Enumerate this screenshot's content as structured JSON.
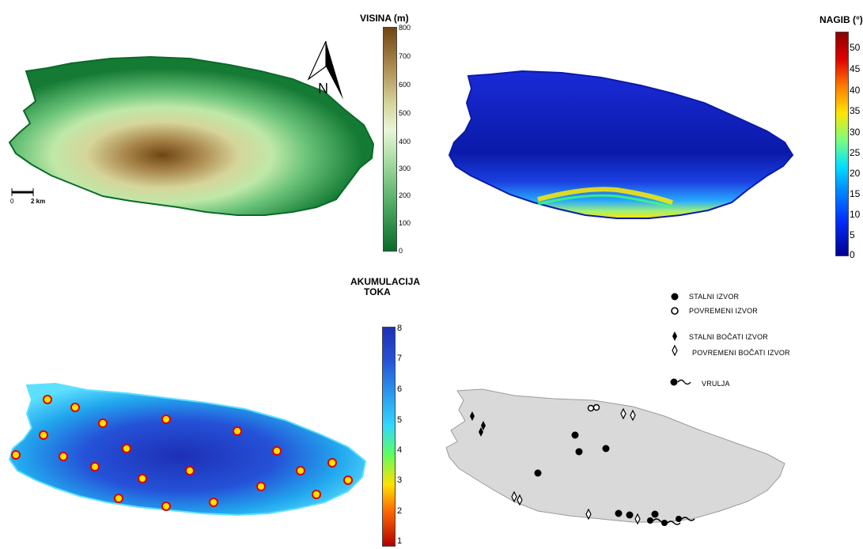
{
  "elevation_map": {
    "legend_title": "VISINA  (m)",
    "ticks": [
      "800",
      "700",
      "600",
      "500",
      "400",
      "300",
      "200",
      "100",
      "0"
    ],
    "scale_bar": {
      "left": "0",
      "right": "2 km"
    },
    "north_label": "N",
    "colors": {
      "low": "#0b6a2a",
      "mid_low": "#3fae5a",
      "mid": "#d8f0c0",
      "mid_high": "#c8b86a",
      "high": "#6e4512"
    }
  },
  "slope_map": {
    "legend_title": "NAGIB (°)",
    "ticks": [
      "50",
      "45",
      "40",
      "35",
      "30",
      "25",
      "20",
      "15",
      "10",
      "5",
      "0"
    ],
    "colors": {
      "low": "#00008f",
      "mid": "#00b5ff",
      "green": "#40ff70",
      "yellow": "#ffe400",
      "high": "#8b0000"
    }
  },
  "flow_map": {
    "legend_title_line1": "AKUMULACIJA",
    "legend_title_line2": "TOKA",
    "ticks": [
      "8",
      "7",
      "6",
      "5",
      "4",
      "3",
      "2",
      "1"
    ],
    "colors": {
      "high": "#1d2fb5",
      "mid": "#2db8f0",
      "green": "#5dff60",
      "yellow": "#ffe000",
      "low": "#b40000"
    }
  },
  "springs_map": {
    "legend": [
      {
        "label": "STALNI IZVOR",
        "icon": "filled-circle-icon"
      },
      {
        "label": "POVREMENI IZVOR",
        "icon": "open-circle-icon"
      },
      {
        "label": "STALNI BOČATI IZVOR",
        "icon": "filled-diamond-icon"
      },
      {
        "label": "POVREMENI BOČATI IZVOR",
        "icon": "open-diamond-icon"
      },
      {
        "label": "VRULJA",
        "icon": "submarine-spring-icon"
      }
    ],
    "island_fill": "#d9d9d9"
  }
}
